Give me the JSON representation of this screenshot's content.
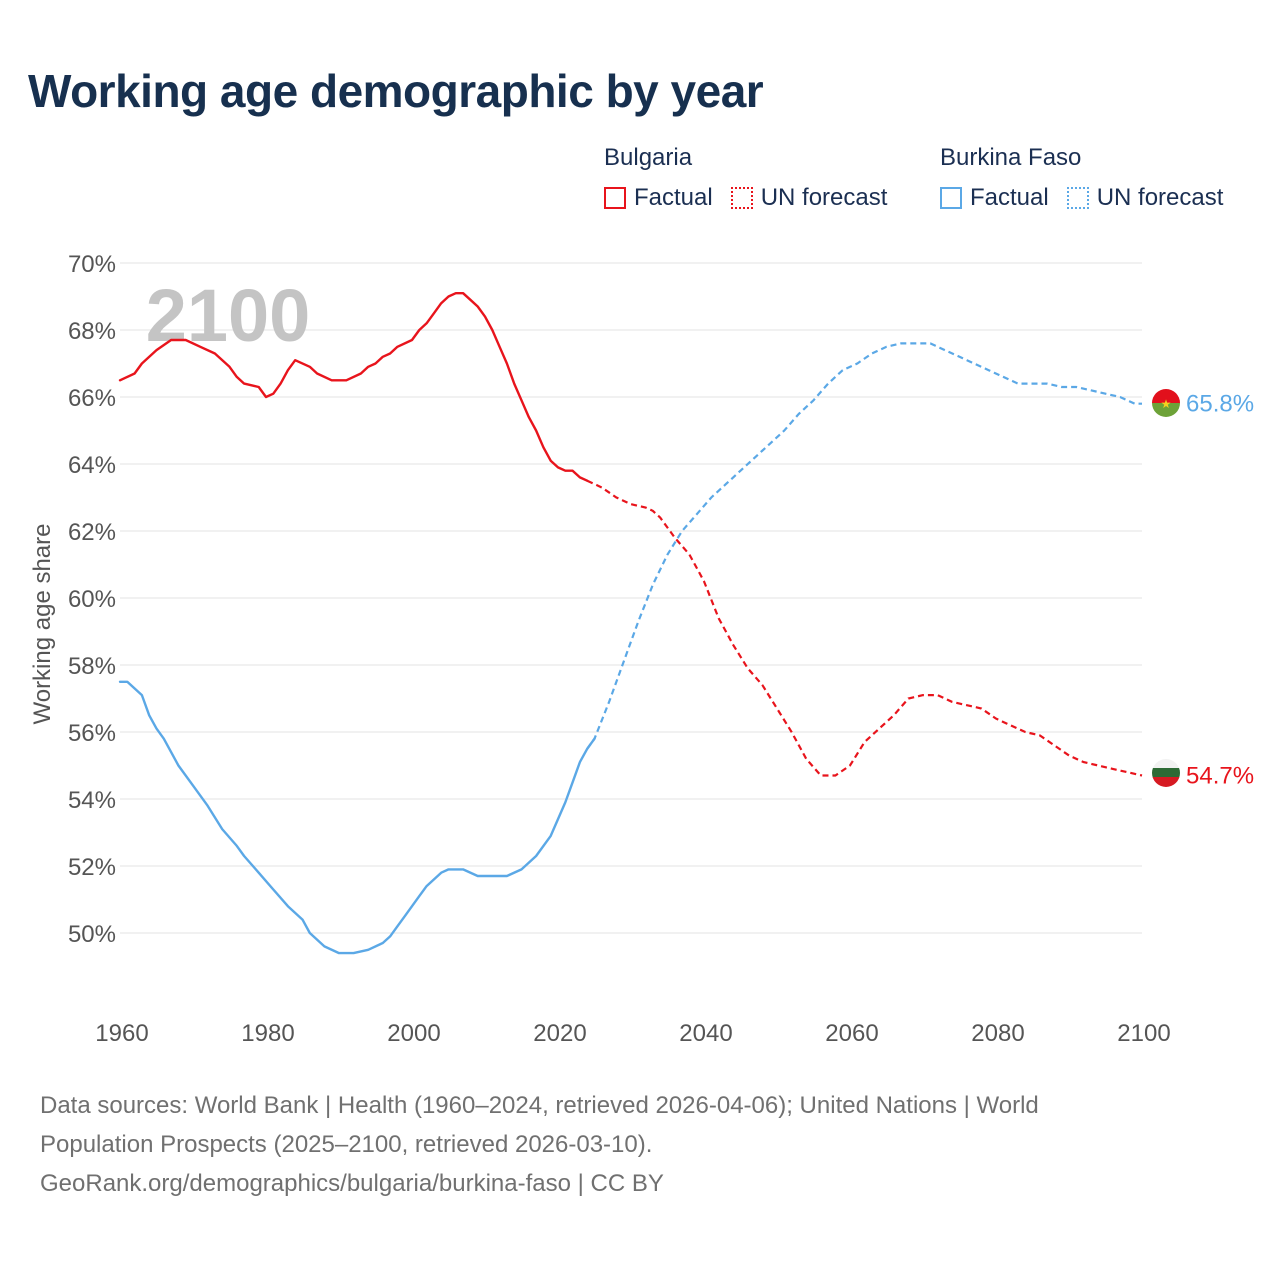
{
  "title": "Working age demographic by year",
  "legend": {
    "groups": [
      {
        "country": "Bulgaria",
        "color": "#e8141c",
        "factual_label": "Factual",
        "forecast_label": "UN forecast"
      },
      {
        "country": "Burkina Faso",
        "color": "#5ba8e6",
        "factual_label": "Factual",
        "forecast_label": "UN forecast"
      }
    ]
  },
  "year_watermark": "2100",
  "sources": {
    "line1": "Data sources: World Bank | Health (1960–2024, retrieved 2026-04-06); United Nations | World",
    "line2": "Population Prospects (2025–2100, retrieved 2026-03-10).",
    "line3": "GeoRank.org/demographics/bulgaria/burkina-faso | CC BY"
  },
  "chart_data": {
    "type": "line",
    "title": "Working age demographic by year",
    "xlabel": "",
    "ylabel": "Working age share",
    "xlim": [
      1960,
      2100
    ],
    "ylim": [
      48,
      70
    ],
    "x_ticks": [
      "1960",
      "1980",
      "2000",
      "2020",
      "2040",
      "2060",
      "2080",
      "2100"
    ],
    "y_ticks": [
      "50%",
      "52%",
      "54%",
      "56%",
      "58%",
      "60%",
      "62%",
      "64%",
      "66%",
      "68%",
      "70%"
    ],
    "grid": true,
    "factual_range": [
      1960,
      2024
    ],
    "forecast_range": [
      2025,
      2100
    ],
    "series": [
      {
        "name": "Bulgaria",
        "color": "#e8141c",
        "end_label": "54.7%",
        "flag": "bulgaria",
        "points": [
          [
            1960,
            66.5
          ],
          [
            1962,
            66.7
          ],
          [
            1963,
            67.0
          ],
          [
            1965,
            67.4
          ],
          [
            1967,
            67.7
          ],
          [
            1969,
            67.7
          ],
          [
            1971,
            67.5
          ],
          [
            1973,
            67.3
          ],
          [
            1975,
            66.9
          ],
          [
            1976,
            66.6
          ],
          [
            1977,
            66.4
          ],
          [
            1979,
            66.3
          ],
          [
            1980,
            66.0
          ],
          [
            1981,
            66.1
          ],
          [
            1982,
            66.4
          ],
          [
            1983,
            66.8
          ],
          [
            1984,
            67.1
          ],
          [
            1986,
            66.9
          ],
          [
            1987,
            66.7
          ],
          [
            1989,
            66.5
          ],
          [
            1991,
            66.5
          ],
          [
            1993,
            66.7
          ],
          [
            1994,
            66.9
          ],
          [
            1995,
            67.0
          ],
          [
            1996,
            67.2
          ],
          [
            1997,
            67.3
          ],
          [
            1998,
            67.5
          ],
          [
            2000,
            67.7
          ],
          [
            2001,
            68.0
          ],
          [
            2002,
            68.2
          ],
          [
            2003,
            68.5
          ],
          [
            2004,
            68.8
          ],
          [
            2005,
            69.0
          ],
          [
            2006,
            69.1
          ],
          [
            2007,
            69.1
          ],
          [
            2008,
            68.9
          ],
          [
            2009,
            68.7
          ],
          [
            2010,
            68.4
          ],
          [
            2011,
            68.0
          ],
          [
            2012,
            67.5
          ],
          [
            2013,
            67.0
          ],
          [
            2014,
            66.4
          ],
          [
            2015,
            65.9
          ],
          [
            2016,
            65.4
          ],
          [
            2017,
            65.0
          ],
          [
            2018,
            64.5
          ],
          [
            2019,
            64.1
          ],
          [
            2020,
            63.9
          ],
          [
            2021,
            63.8
          ],
          [
            2022,
            63.8
          ],
          [
            2023,
            63.6
          ],
          [
            2024,
            63.5
          ],
          [
            2026,
            63.3
          ],
          [
            2028,
            63.0
          ],
          [
            2030,
            62.8
          ],
          [
            2032,
            62.7
          ],
          [
            2033,
            62.6
          ],
          [
            2034,
            62.4
          ],
          [
            2036,
            61.8
          ],
          [
            2038,
            61.3
          ],
          [
            2040,
            60.5
          ],
          [
            2042,
            59.4
          ],
          [
            2044,
            58.6
          ],
          [
            2046,
            57.9
          ],
          [
            2048,
            57.4
          ],
          [
            2050,
            56.7
          ],
          [
            2052,
            56.0
          ],
          [
            2054,
            55.2
          ],
          [
            2056,
            54.7
          ],
          [
            2058,
            54.7
          ],
          [
            2060,
            55.0
          ],
          [
            2062,
            55.7
          ],
          [
            2064,
            56.1
          ],
          [
            2066,
            56.5
          ],
          [
            2068,
            57.0
          ],
          [
            2070,
            57.1
          ],
          [
            2072,
            57.1
          ],
          [
            2074,
            56.9
          ],
          [
            2076,
            56.8
          ],
          [
            2078,
            56.7
          ],
          [
            2080,
            56.4
          ],
          [
            2082,
            56.2
          ],
          [
            2084,
            56.0
          ],
          [
            2086,
            55.9
          ],
          [
            2088,
            55.6
          ],
          [
            2090,
            55.3
          ],
          [
            2092,
            55.1
          ],
          [
            2094,
            55.0
          ],
          [
            2096,
            54.9
          ],
          [
            2098,
            54.8
          ],
          [
            2100,
            54.7
          ]
        ]
      },
      {
        "name": "Burkina Faso",
        "color": "#5ba8e6",
        "end_label": "65.8%",
        "flag": "burkina-faso",
        "points": [
          [
            1960,
            57.5
          ],
          [
            1961,
            57.5
          ],
          [
            1963,
            57.1
          ],
          [
            1964,
            56.5
          ],
          [
            1965,
            56.1
          ],
          [
            1966,
            55.8
          ],
          [
            1967,
            55.4
          ],
          [
            1968,
            55.0
          ],
          [
            1970,
            54.4
          ],
          [
            1972,
            53.8
          ],
          [
            1974,
            53.1
          ],
          [
            1976,
            52.6
          ],
          [
            1977,
            52.3
          ],
          [
            1979,
            51.8
          ],
          [
            1981,
            51.3
          ],
          [
            1983,
            50.8
          ],
          [
            1985,
            50.4
          ],
          [
            1986,
            50.0
          ],
          [
            1988,
            49.6
          ],
          [
            1990,
            49.4
          ],
          [
            1992,
            49.4
          ],
          [
            1994,
            49.5
          ],
          [
            1996,
            49.7
          ],
          [
            1997,
            49.9
          ],
          [
            1998,
            50.2
          ],
          [
            1999,
            50.5
          ],
          [
            2000,
            50.8
          ],
          [
            2001,
            51.1
          ],
          [
            2002,
            51.4
          ],
          [
            2004,
            51.8
          ],
          [
            2005,
            51.9
          ],
          [
            2007,
            51.9
          ],
          [
            2009,
            51.7
          ],
          [
            2011,
            51.7
          ],
          [
            2013,
            51.7
          ],
          [
            2015,
            51.9
          ],
          [
            2017,
            52.3
          ],
          [
            2019,
            52.9
          ],
          [
            2020,
            53.4
          ],
          [
            2021,
            53.9
          ],
          [
            2022,
            54.5
          ],
          [
            2023,
            55.1
          ],
          [
            2024,
            55.5
          ],
          [
            2025,
            55.8
          ],
          [
            2027,
            56.9
          ],
          [
            2029,
            58.1
          ],
          [
            2031,
            59.3
          ],
          [
            2033,
            60.4
          ],
          [
            2035,
            61.3
          ],
          [
            2037,
            62.0
          ],
          [
            2039,
            62.5
          ],
          [
            2041,
            63.0
          ],
          [
            2043,
            63.4
          ],
          [
            2045,
            63.8
          ],
          [
            2047,
            64.2
          ],
          [
            2049,
            64.6
          ],
          [
            2051,
            65.0
          ],
          [
            2053,
            65.5
          ],
          [
            2055,
            65.9
          ],
          [
            2057,
            66.4
          ],
          [
            2059,
            66.8
          ],
          [
            2061,
            67.0
          ],
          [
            2063,
            67.3
          ],
          [
            2065,
            67.5
          ],
          [
            2067,
            67.6
          ],
          [
            2069,
            67.6
          ],
          [
            2071,
            67.6
          ],
          [
            2073,
            67.4
          ],
          [
            2075,
            67.2
          ],
          [
            2077,
            67.0
          ],
          [
            2079,
            66.8
          ],
          [
            2081,
            66.6
          ],
          [
            2083,
            66.4
          ],
          [
            2085,
            66.4
          ],
          [
            2087,
            66.4
          ],
          [
            2089,
            66.3
          ],
          [
            2091,
            66.3
          ],
          [
            2093,
            66.2
          ],
          [
            2095,
            66.1
          ],
          [
            2097,
            66.0
          ],
          [
            2099,
            65.8
          ],
          [
            2100,
            65.8
          ]
        ]
      }
    ]
  }
}
